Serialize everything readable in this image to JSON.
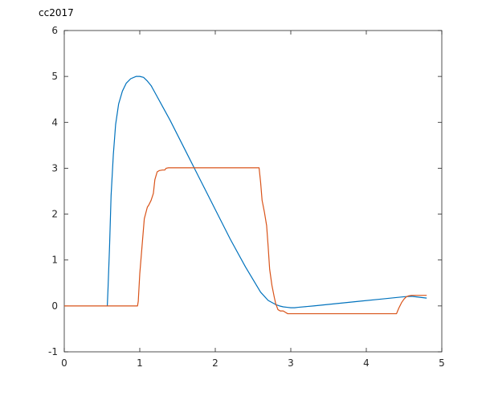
{
  "chart_data": {
    "type": "line",
    "title": "cc2017",
    "xlabel": "",
    "ylabel": "",
    "xlim": [
      0,
      5
    ],
    "ylim": [
      -1,
      6
    ],
    "xticks": [
      "0",
      "1",
      "2",
      "3",
      "4",
      "5"
    ],
    "yticks": [
      "-1",
      "0",
      "1",
      "2",
      "3",
      "4",
      "5",
      "6"
    ],
    "grid": false,
    "legend": "none",
    "series": [
      {
        "color": "#0072BD",
        "x": [
          0.57,
          0.58,
          0.6,
          0.62,
          0.65,
          0.68,
          0.72,
          0.77,
          0.82,
          0.88,
          0.95,
          1.0,
          1.05,
          1.1,
          1.15,
          1.2,
          1.3,
          1.4,
          1.6,
          1.8,
          2.0,
          2.2,
          2.4,
          2.6,
          2.7,
          2.8,
          2.85,
          2.9,
          2.95,
          3.0,
          3.05,
          3.1,
          3.3,
          3.6,
          3.9,
          4.2,
          4.5,
          4.6,
          4.7,
          4.8
        ],
        "values": [
          0.0,
          0.4,
          1.3,
          2.4,
          3.3,
          3.95,
          4.4,
          4.68,
          4.85,
          4.95,
          5.0,
          5.0,
          4.98,
          4.9,
          4.8,
          4.65,
          4.35,
          4.05,
          3.4,
          2.75,
          2.1,
          1.45,
          0.85,
          0.3,
          0.12,
          0.03,
          0.0,
          -0.02,
          -0.03,
          -0.04,
          -0.04,
          -0.03,
          0.0,
          0.05,
          0.1,
          0.15,
          0.2,
          0.21,
          0.19,
          0.17
        ]
      },
      {
        "color": "#D95319",
        "x": [
          0.0,
          0.97,
          0.98,
          1.0,
          1.03,
          1.06,
          1.1,
          1.12,
          1.15,
          1.18,
          1.2,
          1.23,
          1.26,
          1.3,
          1.33,
          1.35,
          1.38,
          1.5,
          2.0,
          2.5,
          2.58,
          2.6,
          2.62,
          2.65,
          2.68,
          2.7,
          2.72,
          2.75,
          2.78,
          2.8,
          2.83,
          2.86,
          2.9,
          2.93,
          2.96,
          3.0,
          3.5,
          4.0,
          4.4,
          4.43,
          4.47,
          4.5,
          4.53,
          4.56,
          4.6,
          4.8
        ],
        "values": [
          0.0,
          0.0,
          0.1,
          0.7,
          1.3,
          1.9,
          2.15,
          2.2,
          2.3,
          2.45,
          2.75,
          2.92,
          2.95,
          2.96,
          2.96,
          3.0,
          3.01,
          3.01,
          3.01,
          3.01,
          3.01,
          2.7,
          2.3,
          2.05,
          1.75,
          1.3,
          0.8,
          0.45,
          0.2,
          0.05,
          -0.08,
          -0.11,
          -0.11,
          -0.14,
          -0.17,
          -0.17,
          -0.17,
          -0.17,
          -0.17,
          -0.05,
          0.08,
          0.15,
          0.2,
          0.22,
          0.23,
          0.23
        ]
      }
    ]
  }
}
